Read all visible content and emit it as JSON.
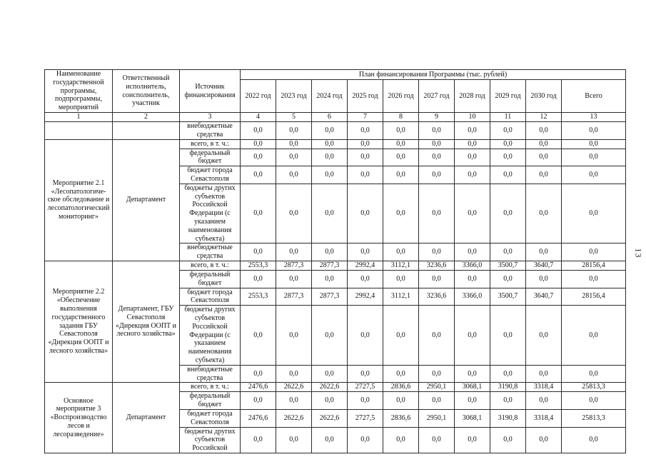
{
  "page": {
    "page_number": "13"
  },
  "table": {
    "header": {
      "col1": "Наименование государственной программы, подпрограммы, мероприятий",
      "col2": "Ответственный исполнитель, соисполнитель, участник",
      "col3": "Источник финансирования",
      "plan_title": "План финансирования Программы (тыс. рублей)",
      "year_cols": [
        "2022 год",
        "2023 год",
        "2024 год",
        "2025 год",
        "2026 год",
        "2027 год",
        "2028 год",
        "2029 год",
        "2030 год",
        "Всего"
      ],
      "col_numbers": [
        "1",
        "2",
        "3",
        "4",
        "5",
        "6",
        "7",
        "8",
        "9",
        "10",
        "11",
        "12",
        "13"
      ]
    },
    "groups": [
      {
        "name": "",
        "executor": "",
        "rows": [
          {
            "source": "внебюджетные средства",
            "values": [
              "0,0",
              "0,0",
              "0,0",
              "0,0",
              "0,0",
              "0,0",
              "0,0",
              "0,0",
              "0,0",
              "0,0"
            ]
          }
        ]
      },
      {
        "name": "Мероприятие 2.1 «Лесопатологиче- ское обследование и лесопатологический мониторинг»",
        "executor": "Департамент",
        "rows": [
          {
            "source": "всего, в т. ч.:",
            "values": [
              "0,0",
              "0,0",
              "0,0",
              "0,0",
              "0,0",
              "0,0",
              "0,0",
              "0,0",
              "0,0",
              "0,0"
            ]
          },
          {
            "source": "федеральный бюджет",
            "values": [
              "0,0",
              "0,0",
              "0,0",
              "0,0",
              "0,0",
              "0,0",
              "0,0",
              "0,0",
              "0,0",
              "0,0"
            ]
          },
          {
            "source": "бюджет города Севастополя",
            "values": [
              "0,0",
              "0,0",
              "0,0",
              "0,0",
              "0,0",
              "0,0",
              "0,0",
              "0,0",
              "0,0",
              "0,0"
            ]
          },
          {
            "source": "бюджеты других субъектов Российской Федерации (с указанием наименования субъекта)",
            "values": [
              "0,0",
              "0,0",
              "0,0",
              "0,0",
              "0,0",
              "0,0",
              "0,0",
              "0,0",
              "0,0",
              "0,0"
            ]
          },
          {
            "source": "внебюджетные средства",
            "values": [
              "0,0",
              "0,0",
              "0,0",
              "0,0",
              "0,0",
              "0,0",
              "0,0",
              "0,0",
              "0,0",
              "0,0"
            ]
          }
        ]
      },
      {
        "name": "Мероприятие 2.2 «Обеспечение выполнения государственного задания ГБУ Севастополя «Дирекция ООПТ и лесного хозяйства»",
        "executor": "Департамент, ГБУ Севастополя «Дирекция ООПТ и лесного хозяйства»",
        "rows": [
          {
            "source": "всего, в т. ч.:",
            "values": [
              "2553,3",
              "2877,3",
              "2877,3",
              "2992,4",
              "3112,1",
              "3236,6",
              "3366,0",
              "3500,7",
              "3640,7",
              "28156,4"
            ]
          },
          {
            "source": "федеральный бюджет",
            "values": [
              "0,0",
              "0,0",
              "0,0",
              "0,0",
              "0,0",
              "0,0",
              "0,0",
              "0,0",
              "0,0",
              "0,0"
            ]
          },
          {
            "source": "бюджет города Севастополя",
            "values": [
              "2553,3",
              "2877,3",
              "2877,3",
              "2992,4",
              "3112,1",
              "3236,6",
              "3366,0",
              "3500,7",
              "3640,7",
              "28156,4"
            ]
          },
          {
            "source": "бюджеты других субъектов Российской Федерации (с указанием наименования субъекта)",
            "values": [
              "0,0",
              "0,0",
              "0,0",
              "0,0",
              "0,0",
              "0,0",
              "0,0",
              "0,0",
              "0,0",
              "0,0"
            ]
          },
          {
            "source": "внебюджетные средства",
            "values": [
              "0,0",
              "0,0",
              "0,0",
              "0,0",
              "0,0",
              "0,0",
              "0,0",
              "0,0",
              "0,0",
              "0,0"
            ]
          }
        ]
      },
      {
        "name": "Основное мероприятие 3 «Воспроизводство лесов и лесоразведение»",
        "executor": "Департамент",
        "rows": [
          {
            "source": "всего, в т. ч.:",
            "values": [
              "2476,6",
              "2622,6",
              "2622,6",
              "2727,5",
              "2836,6",
              "2950,1",
              "3068,1",
              "3190,8",
              "3318,4",
              "25813,3"
            ]
          },
          {
            "source": "федеральный бюджет",
            "values": [
              "0,0",
              "0,0",
              "0,0",
              "0,0",
              "0,0",
              "0,0",
              "0,0",
              "0,0",
              "0,0",
              "0,0"
            ]
          },
          {
            "source": "бюджет города Севастополя",
            "values": [
              "2476,6",
              "2622,6",
              "2622,6",
              "2727,5",
              "2836,6",
              "2950,1",
              "3068,1",
              "3190,8",
              "3318,4",
              "25813,3"
            ]
          },
          {
            "source": "бюджеты других субъектов Российской",
            "values": [
              "0,0",
              "0,0",
              "0,0",
              "0,0",
              "0,0",
              "0,0",
              "0,0",
              "0,0",
              "0,0",
              "0,0"
            ]
          }
        ]
      }
    ]
  }
}
